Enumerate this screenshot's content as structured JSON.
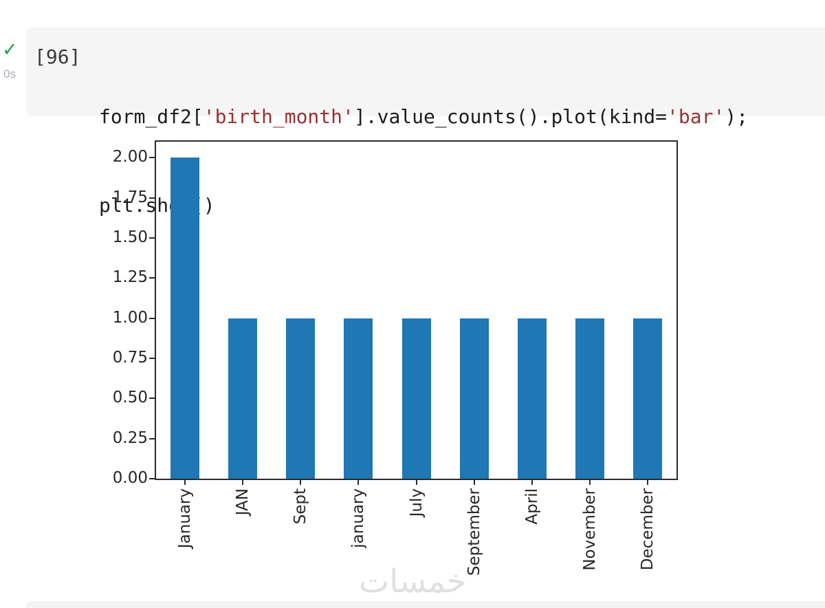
{
  "notebook": {
    "execution": {
      "status_icon": "check-icon",
      "status_color": "#1fa04d",
      "duration": "0s",
      "count_label": "[96]"
    },
    "code": {
      "line1_segments": [
        {
          "text": "form_df2[",
          "type": "plain"
        },
        {
          "text": "'birth_month'",
          "type": "string"
        },
        {
          "text": "].value_counts().plot(kind=",
          "type": "plain"
        },
        {
          "text": "'bar'",
          "type": "string"
        },
        {
          "text": ");",
          "type": "plain"
        }
      ],
      "line2": "plt.show()",
      "string_token_color": "#9a3030"
    }
  },
  "chart_data": {
    "type": "bar",
    "title": "",
    "xlabel": "",
    "ylabel": "",
    "categories": [
      "January",
      "JAN",
      "Sept",
      "january",
      "July",
      "September",
      "April",
      "November",
      "December"
    ],
    "values": [
      2,
      1,
      1,
      1,
      1,
      1,
      1,
      1,
      1
    ],
    "ylim": [
      0,
      2.1
    ],
    "ytick_labels": [
      "0.00",
      "0.25",
      "0.50",
      "0.75",
      "1.00",
      "1.25",
      "1.50",
      "1.75",
      "2.00"
    ],
    "ytick_values": [
      0,
      0.25,
      0.5,
      0.75,
      1.0,
      1.25,
      1.5,
      1.75,
      2.0
    ],
    "bar_color": "#1f77b4",
    "bar_width_fraction": 0.5,
    "tick_label_rotation": 90,
    "grid": false,
    "legend_position": "none",
    "frame_color": "#2b2b2b"
  },
  "watermark": {
    "text": "خمسات",
    "color": "#dfdfdf"
  }
}
